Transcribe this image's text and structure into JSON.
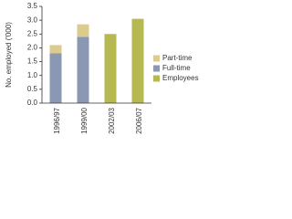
{
  "chart_data": {
    "type": "bar",
    "stacked": true,
    "y_label": "No. employed ('000)",
    "categories": [
      "1996/97",
      "1999/00",
      "2002/03",
      "2006/07"
    ],
    "series": [
      {
        "name": "Part-time",
        "color": "#dccb8c",
        "values": [
          0.3,
          0.45,
          null,
          null
        ]
      },
      {
        "name": "Full-time",
        "color": "#8b98b3",
        "values": [
          1.8,
          2.4,
          null,
          null
        ]
      },
      {
        "name": "Employees",
        "color": "#b6b951",
        "values": [
          null,
          null,
          2.5,
          3.05
        ]
      }
    ],
    "ylim": [
      0,
      3.5
    ],
    "yticks": [
      {
        "value": 0,
        "label": "0.0"
      },
      {
        "value": 0.5,
        "label": "0.5"
      },
      {
        "value": 1,
        "label": "1.0"
      },
      {
        "value": 1.5,
        "label": "1.5"
      },
      {
        "value": 2,
        "label": "2.0"
      },
      {
        "value": 2.5,
        "label": "2.5"
      },
      {
        "value": 3,
        "label": "3.0"
      },
      {
        "value": 3.5,
        "label": "3.5"
      }
    ],
    "grid": false
  }
}
